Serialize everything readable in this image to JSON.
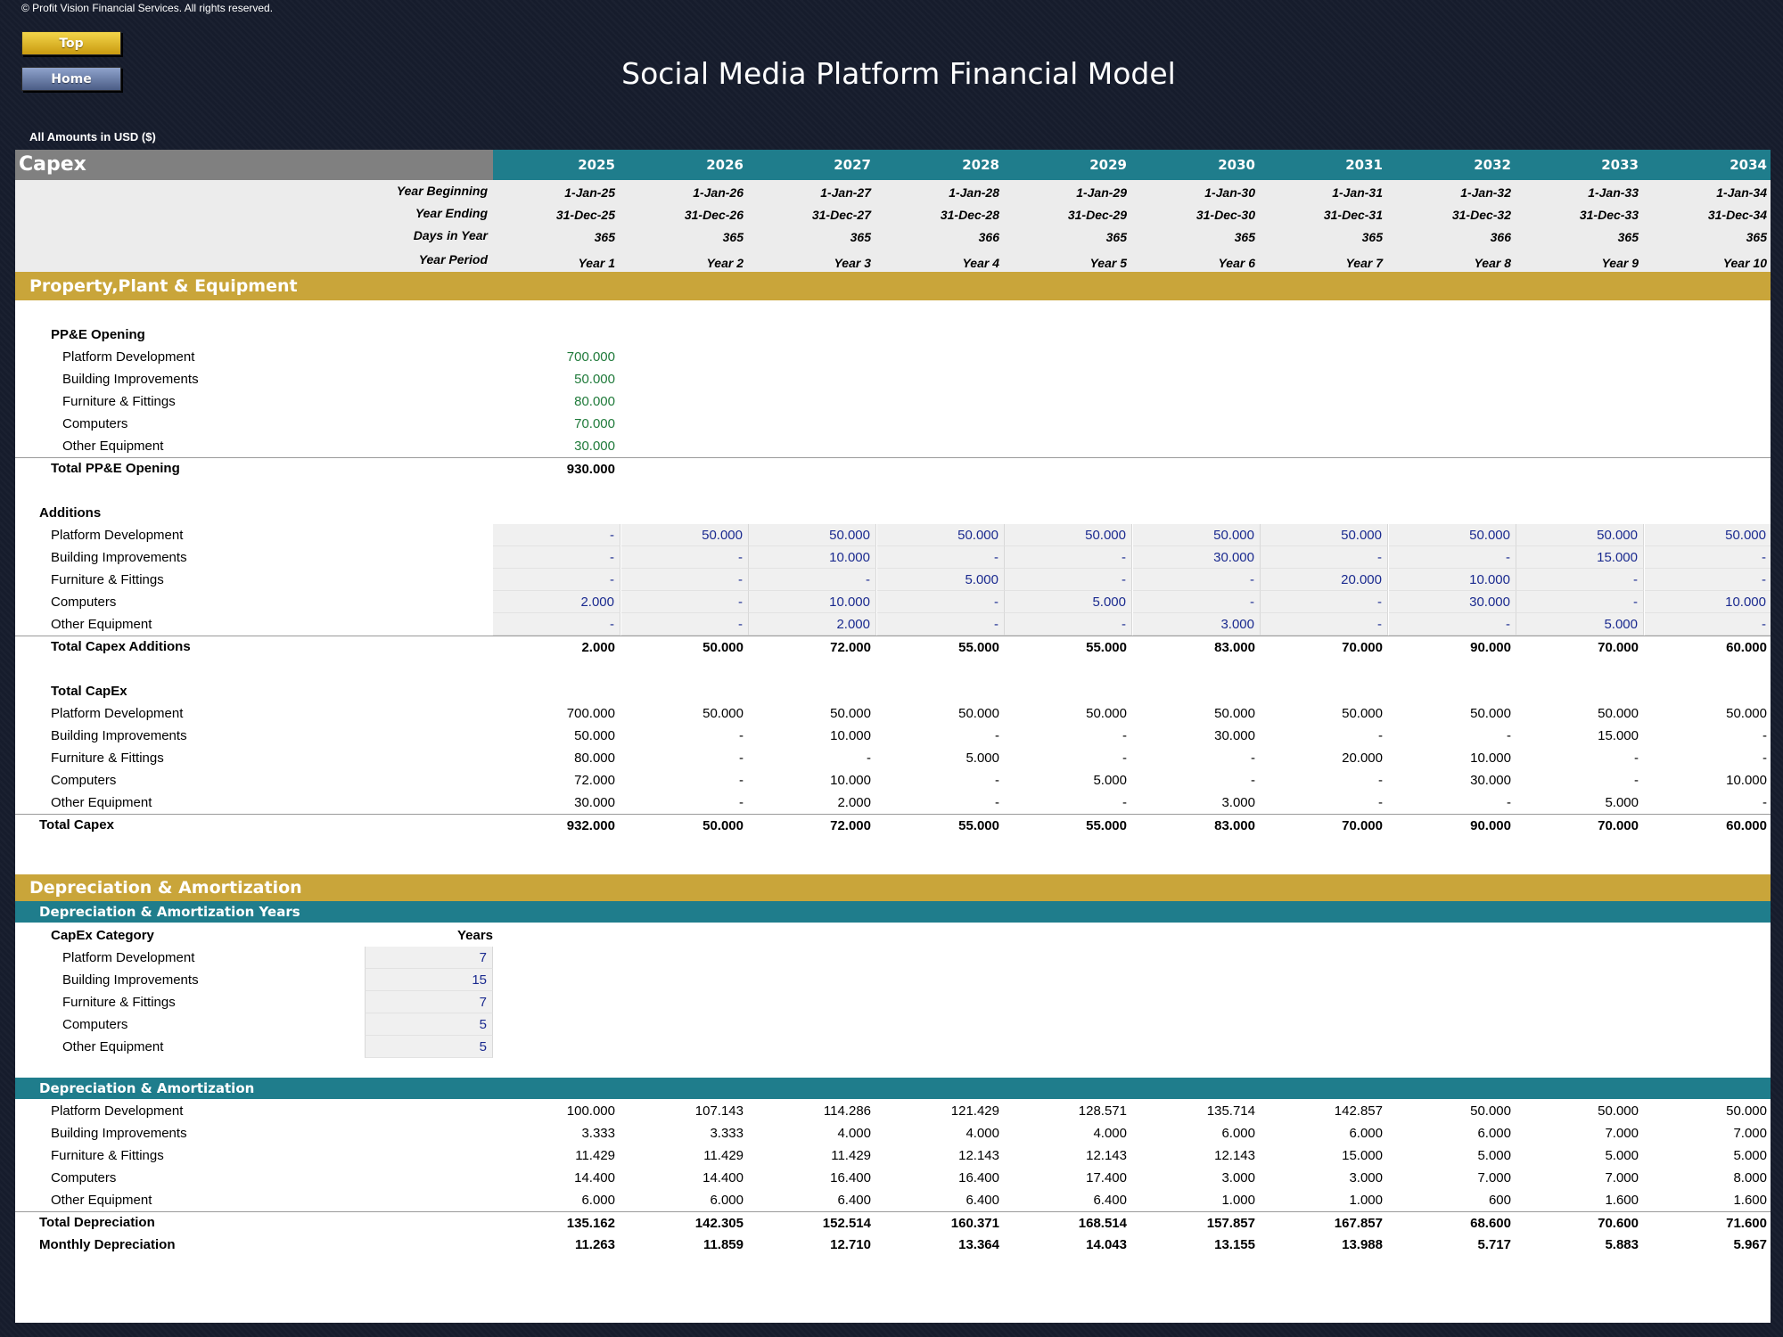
{
  "copyright": "© Profit Vision Financial Services. All rights reserved.",
  "buttons": {
    "top": "Top",
    "home": "Home"
  },
  "title": "Social Media Platform Financial Model",
  "amounts_note": "All Amounts in  USD ($)",
  "colors": {
    "teal": "#1f7d8c",
    "gold": "#c9a53a",
    "input_blue": "#1a2a8f",
    "input_green": "#1f7a3a",
    "background": "#161c2c"
  },
  "header": {
    "section": "Capex",
    "years": [
      "2025",
      "2026",
      "2027",
      "2028",
      "2029",
      "2030",
      "2031",
      "2032",
      "2033",
      "2034"
    ],
    "meta": [
      {
        "label": "Year Beginning",
        "values": [
          "1-Jan-25",
          "1-Jan-26",
          "1-Jan-27",
          "1-Jan-28",
          "1-Jan-29",
          "1-Jan-30",
          "1-Jan-31",
          "1-Jan-32",
          "1-Jan-33",
          "1-Jan-34"
        ]
      },
      {
        "label": "Year Ending",
        "values": [
          "31-Dec-25",
          "31-Dec-26",
          "31-Dec-27",
          "31-Dec-28",
          "31-Dec-29",
          "31-Dec-30",
          "31-Dec-31",
          "31-Dec-32",
          "31-Dec-33",
          "31-Dec-34"
        ]
      },
      {
        "label": "Days in Year",
        "values": [
          "365",
          "365",
          "365",
          "366",
          "365",
          "365",
          "365",
          "366",
          "365",
          "365"
        ]
      },
      {
        "label": "Year Period",
        "values": [
          "Year 1",
          "Year 2",
          "Year 3",
          "Year 4",
          "Year 5",
          "Year 6",
          "Year 7",
          "Year 8",
          "Year 9",
          "Year 10"
        ]
      }
    ]
  },
  "ppe": {
    "band": "Property,Plant & Equipment",
    "opening_title": "PP&E Opening",
    "opening": [
      {
        "label": "Platform Development",
        "value": "700.000"
      },
      {
        "label": "Building Improvements",
        "value": "50.000"
      },
      {
        "label": "Furniture & Fittings",
        "value": "80.000"
      },
      {
        "label": "Computers",
        "value": "70.000"
      },
      {
        "label": "Other Equipment",
        "value": "30.000"
      }
    ],
    "opening_total": {
      "label": "Total PP&E Opening",
      "value": "930.000"
    },
    "additions_title": "Additions",
    "additions": [
      {
        "label": "Platform Development",
        "values": [
          "-",
          "50.000",
          "50.000",
          "50.000",
          "50.000",
          "50.000",
          "50.000",
          "50.000",
          "50.000",
          "50.000"
        ]
      },
      {
        "label": "Building Improvements",
        "values": [
          "-",
          "-",
          "10.000",
          "-",
          "-",
          "30.000",
          "-",
          "-",
          "15.000",
          "-"
        ]
      },
      {
        "label": "Furniture & Fittings",
        "values": [
          "-",
          "-",
          "-",
          "5.000",
          "-",
          "-",
          "20.000",
          "10.000",
          "-",
          "-"
        ]
      },
      {
        "label": "Computers",
        "values": [
          "2.000",
          "-",
          "10.000",
          "-",
          "5.000",
          "-",
          "-",
          "30.000",
          "-",
          "10.000"
        ]
      },
      {
        "label": "Other Equipment",
        "values": [
          "-",
          "-",
          "2.000",
          "-",
          "-",
          "3.000",
          "-",
          "-",
          "5.000",
          "-"
        ]
      }
    ],
    "additions_total": {
      "label": "Total Capex Additions",
      "values": [
        "2.000",
        "50.000",
        "72.000",
        "55.000",
        "55.000",
        "83.000",
        "70.000",
        "90.000",
        "70.000",
        "60.000"
      ]
    },
    "capex_title": "Total CapEx",
    "capex": [
      {
        "label": "Platform Development",
        "values": [
          "700.000",
          "50.000",
          "50.000",
          "50.000",
          "50.000",
          "50.000",
          "50.000",
          "50.000",
          "50.000",
          "50.000"
        ]
      },
      {
        "label": "Building Improvements",
        "values": [
          "50.000",
          "-",
          "10.000",
          "-",
          "-",
          "30.000",
          "-",
          "-",
          "15.000",
          "-"
        ]
      },
      {
        "label": "Furniture & Fittings",
        "values": [
          "80.000",
          "-",
          "-",
          "5.000",
          "-",
          "-",
          "20.000",
          "10.000",
          "-",
          "-"
        ]
      },
      {
        "label": "Computers",
        "values": [
          "72.000",
          "-",
          "10.000",
          "-",
          "5.000",
          "-",
          "-",
          "30.000",
          "-",
          "10.000"
        ]
      },
      {
        "label": "Other Equipment",
        "values": [
          "30.000",
          "-",
          "2.000",
          "-",
          "-",
          "3.000",
          "-",
          "-",
          "5.000",
          "-"
        ]
      }
    ],
    "capex_total": {
      "label": "Total Capex",
      "values": [
        "932.000",
        "50.000",
        "72.000",
        "55.000",
        "55.000",
        "83.000",
        "70.000",
        "90.000",
        "70.000",
        "60.000"
      ]
    }
  },
  "da": {
    "band": "Depreciation & Amortization",
    "years_band": "Depreciation & Amortization Years",
    "category_header": "CapEx Category",
    "years_header": "Years",
    "years": [
      {
        "label": "Platform Development",
        "value": "7"
      },
      {
        "label": "Building Improvements",
        "value": "15"
      },
      {
        "label": "Furniture & Fittings",
        "value": "7"
      },
      {
        "label": "Computers",
        "value": "5"
      },
      {
        "label": "Other Equipment",
        "value": "5"
      }
    ],
    "schedule_band": "Depreciation & Amortization",
    "schedule": [
      {
        "label": "Platform Development",
        "values": [
          "100.000",
          "107.143",
          "114.286",
          "121.429",
          "128.571",
          "135.714",
          "142.857",
          "50.000",
          "50.000",
          "50.000"
        ]
      },
      {
        "label": "Building Improvements",
        "values": [
          "3.333",
          "3.333",
          "4.000",
          "4.000",
          "4.000",
          "6.000",
          "6.000",
          "6.000",
          "7.000",
          "7.000"
        ]
      },
      {
        "label": "Furniture & Fittings",
        "values": [
          "11.429",
          "11.429",
          "11.429",
          "12.143",
          "12.143",
          "12.143",
          "15.000",
          "5.000",
          "5.000",
          "5.000"
        ]
      },
      {
        "label": "Computers",
        "values": [
          "14.400",
          "14.400",
          "16.400",
          "16.400",
          "17.400",
          "3.000",
          "3.000",
          "7.000",
          "7.000",
          "8.000"
        ]
      },
      {
        "label": "Other Equipment",
        "values": [
          "6.000",
          "6.000",
          "6.400",
          "6.400",
          "6.400",
          "1.000",
          "1.000",
          "600",
          "1.600",
          "1.600"
        ]
      }
    ],
    "total": {
      "label": "Total Depreciation",
      "values": [
        "135.162",
        "142.305",
        "152.514",
        "160.371",
        "168.514",
        "157.857",
        "167.857",
        "68.600",
        "70.600",
        "71.600"
      ]
    },
    "monthly": {
      "label": "Monthly Depreciation",
      "values": [
        "11.263",
        "11.859",
        "12.710",
        "13.364",
        "14.043",
        "13.155",
        "13.988",
        "5.717",
        "5.883",
        "5.967"
      ]
    }
  }
}
